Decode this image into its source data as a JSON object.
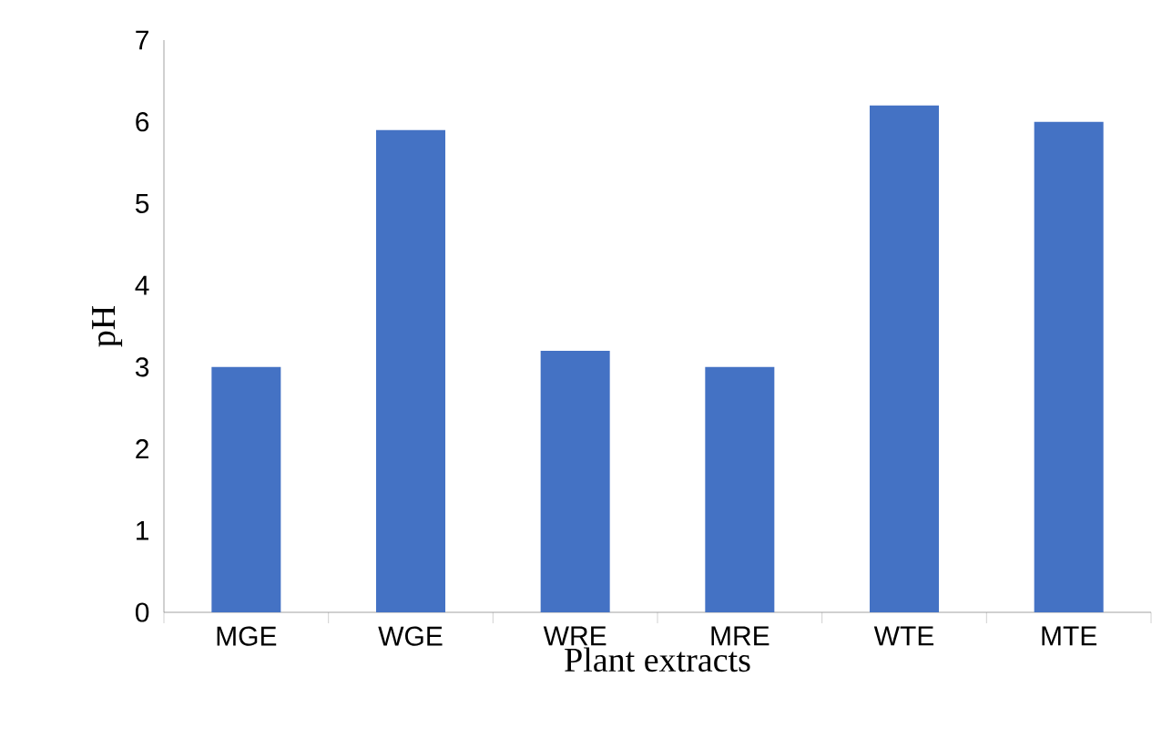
{
  "chart_data": {
    "type": "bar",
    "xlabel": "Plant extracts",
    "ylabel": "pH",
    "categories": [
      "MGE",
      "WGE",
      "WRE",
      "MRE",
      "WTE",
      "MTE"
    ],
    "values": [
      3,
      5.9,
      3.2,
      3,
      6.2,
      6
    ],
    "color": "#4472c4",
    "ylim": [
      0,
      7
    ],
    "yticks": [
      0,
      1,
      2,
      3,
      4,
      5,
      6,
      7
    ],
    "grid": false
  }
}
